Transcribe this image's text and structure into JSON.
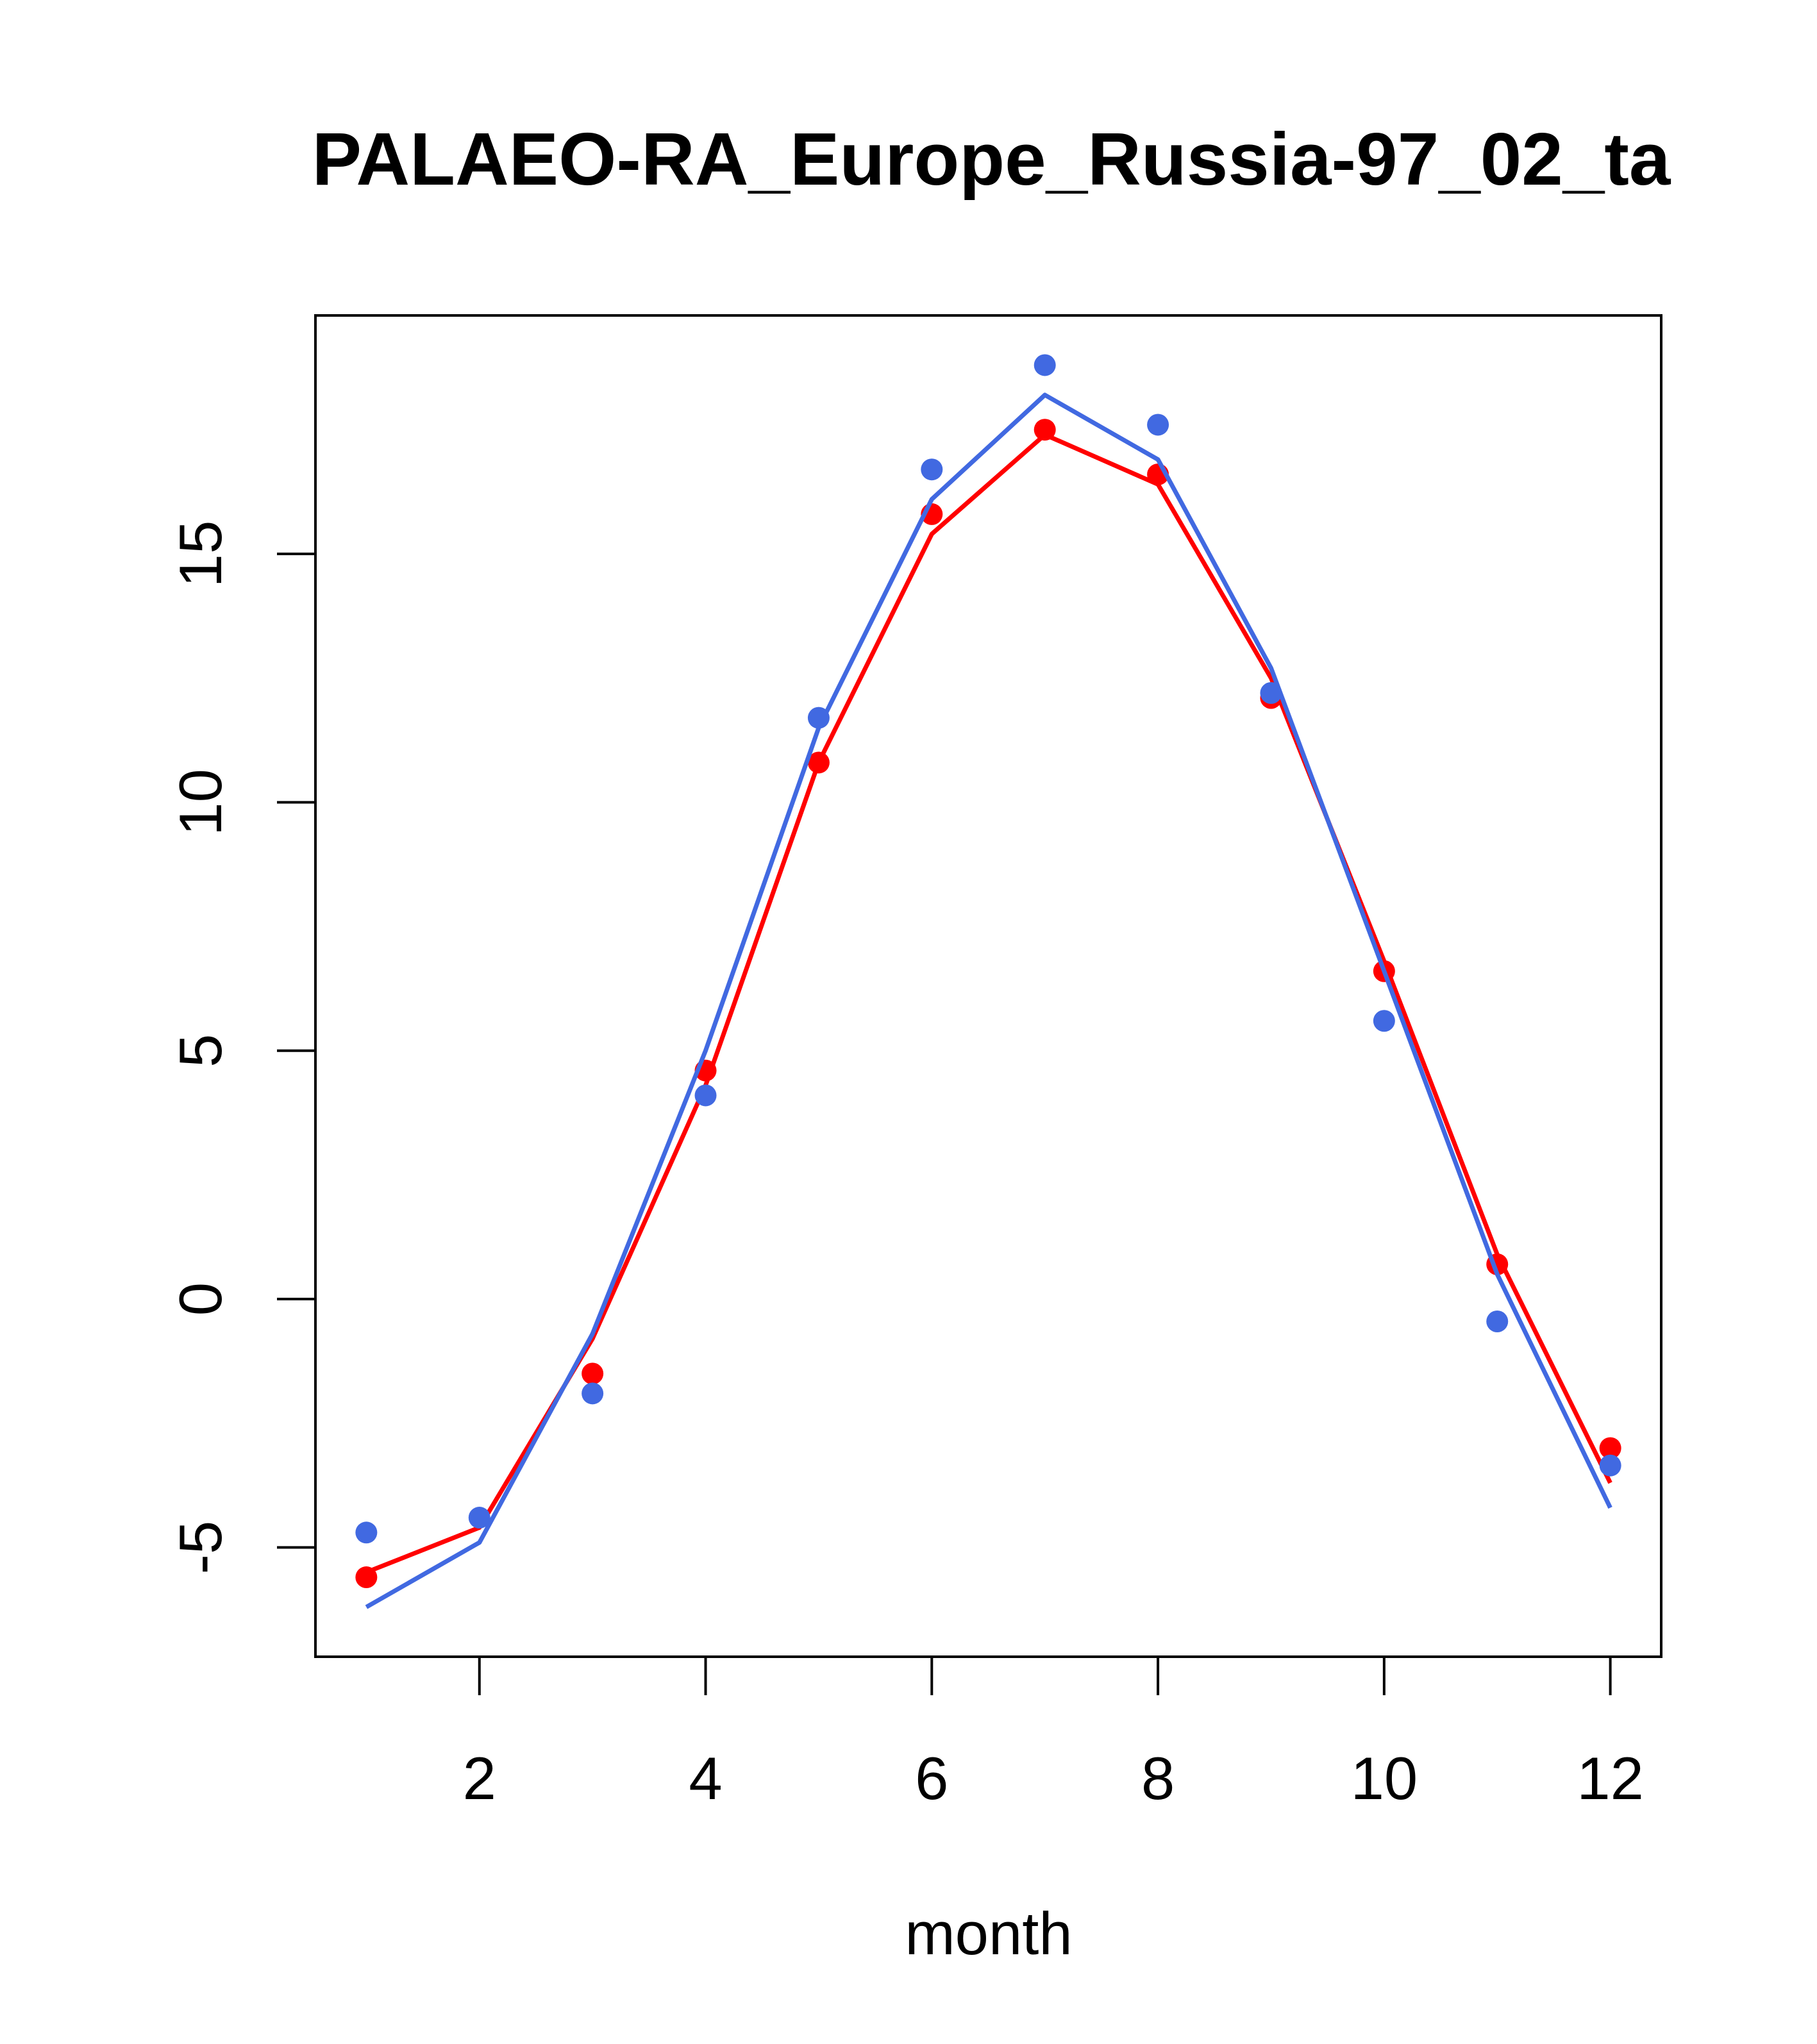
{
  "chart_data": {
    "type": "line",
    "title": "PALAEO-RA_Europe_Russia-97_02_ta",
    "xlabel": "month",
    "ylabel": "",
    "xlim": [
      0.55,
      12.45
    ],
    "ylim": [
      -7.2,
      19.8
    ],
    "xticks": [
      2,
      4,
      6,
      8,
      10,
      12
    ],
    "yticks": [
      -5,
      0,
      5,
      10,
      15
    ],
    "grid": false,
    "series": [
      {
        "color": "#FF0000",
        "x": [
          1,
          2,
          3,
          4,
          5,
          6,
          7,
          8,
          9,
          10,
          11,
          12
        ],
        "line": [
          -5.5,
          -4.6,
          -0.8,
          4.3,
          10.8,
          15.4,
          17.4,
          16.4,
          12.5,
          6.8,
          0.9,
          -3.7
        ],
        "points": [
          -5.6,
          null,
          -1.5,
          4.6,
          10.8,
          15.8,
          17.5,
          16.6,
          12.1,
          6.6,
          0.7,
          -3.0
        ]
      },
      {
        "color": "#4169E1",
        "x": [
          1,
          2,
          3,
          4,
          5,
          6,
          7,
          8,
          9,
          10,
          11,
          12
        ],
        "line": [
          -6.2,
          -4.9,
          -0.7,
          5.0,
          11.5,
          16.1,
          18.2,
          16.9,
          12.7,
          6.6,
          0.5,
          -4.2
        ],
        "points": [
          -4.7,
          -4.4,
          -1.9,
          4.1,
          11.7,
          16.7,
          18.8,
          17.6,
          12.2,
          5.6,
          -0.45,
          -3.35
        ]
      }
    ]
  }
}
